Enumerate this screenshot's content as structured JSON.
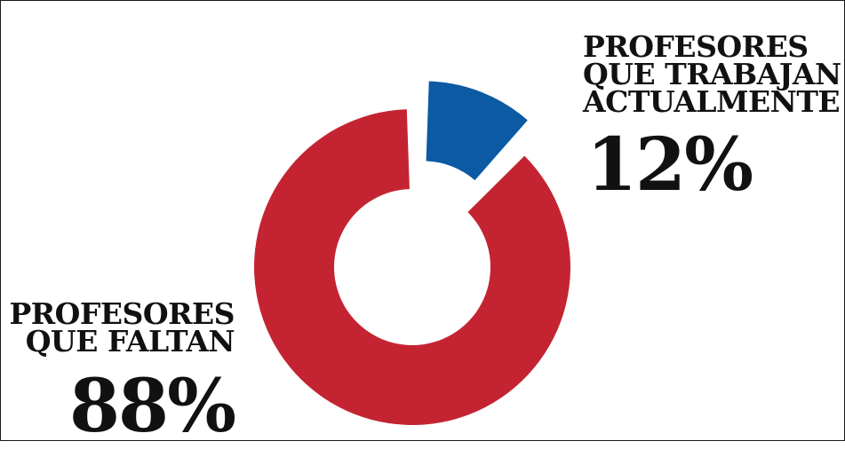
{
  "chart_data": {
    "type": "pie",
    "variant": "donut",
    "slices": [
      {
        "label_lines": [
          "PROFESORES",
          "QUE TRABAJAN",
          "ACTUALMENTE"
        ],
        "value": 12,
        "display": "12%",
        "color": "#0b5aa3",
        "exploded": true
      },
      {
        "label_lines": [
          "PROFESORES",
          "QUE FALTAN"
        ],
        "value": 88,
        "display": "88%",
        "color": "#c42432",
        "exploded": false
      }
    ]
  }
}
